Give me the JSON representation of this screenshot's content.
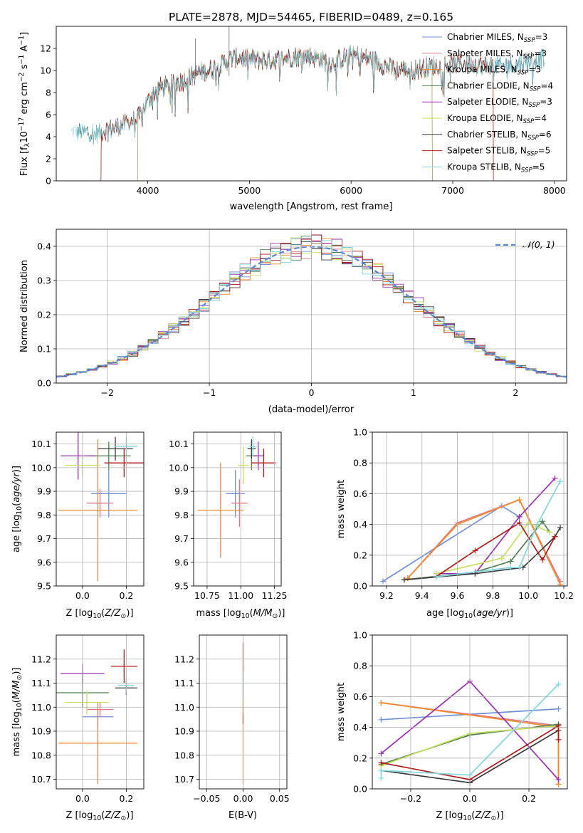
{
  "figure": {
    "title": "PLATE=2878, MJD=54465, FIBERID=0489, z=0.165"
  },
  "colors": {
    "chabrier_miles": "#6f8fd8",
    "salpeter_miles": "#e07a8a",
    "kroupa_miles": "#f08a2a",
    "chabrier_elodie": "#4f7f4f",
    "salpeter_elodie": "#9b30b0",
    "kroupa_elodie": "#c8e060",
    "chabrier_stelib": "#3a3a3a",
    "salpeter_stelib": "#b01818",
    "kroupa_stelib": "#80d8e0",
    "normal_curve": "#5b86d6"
  },
  "chart_data": [
    {
      "id": "spectrum",
      "type": "line",
      "title": "PLATE=2878, MJD=54465, FIBERID=0489, z=0.165",
      "xlabel": "wavelength [Angstrom, rest frame]",
      "ylabel": "Flux [f_λ 10^-17 erg cm^-2 s^-1 A^-1]",
      "xlim": [
        3100,
        8120
      ],
      "ylim": [
        0,
        14
      ],
      "xticks": [
        "4000",
        "5000",
        "6000",
        "7000",
        "8000"
      ],
      "yticks": [
        "0",
        "2",
        "4",
        "6",
        "8",
        "10",
        "12"
      ],
      "grid": false,
      "legend_position": "right",
      "shape": {
        "x": [
          3300,
          3500,
          3600,
          3700,
          3800,
          3900,
          4000,
          4100,
          4200,
          4300,
          4400,
          4500,
          4600,
          4700,
          4800,
          4900,
          5000,
          5200,
          5400,
          5600,
          5800,
          6000,
          6200,
          6400,
          6600,
          6800,
          7000,
          7200,
          7400,
          7600,
          7800,
          7900
        ],
        "y": [
          4.4,
          4.4,
          4.6,
          4.9,
          5.3,
          5.6,
          7.2,
          8.4,
          8.6,
          8.9,
          9.3,
          9.8,
          10.0,
          10.4,
          11.0,
          11.2,
          11.0,
          10.9,
          11.2,
          11.3,
          10.7,
          11.4,
          11.0,
          10.2,
          10.0,
          10.4,
          10.6,
          10.6,
          10.4,
          10.5,
          10.9,
          11.1
        ]
      },
      "series": [
        {
          "label": "Chabrier MILES, N",
          "n_ssp": "3",
          "color_key": "chabrier_miles",
          "cut": [
            3540,
            7880
          ]
        },
        {
          "label": "Salpeter MILES, N",
          "n_ssp": "3",
          "color_key": "salpeter_miles",
          "cut": [
            3540,
            7400
          ]
        },
        {
          "label": "Kroupa MILES, N",
          "n_ssp": "3",
          "color_key": "kroupa_miles",
          "cut": [
            3540,
            7400
          ]
        },
        {
          "label": "Chabrier ELODIE, N",
          "n_ssp": "4",
          "color_key": "chabrier_elodie",
          "cut": [
            3900,
            6800
          ]
        },
        {
          "label": "Salpeter ELODIE, N",
          "n_ssp": "3",
          "color_key": "salpeter_elodie",
          "cut": [
            3900,
            6800
          ]
        },
        {
          "label": "Kroupa ELODIE, N",
          "n_ssp": "4",
          "color_key": "kroupa_elodie",
          "cut": [
            3900,
            6800
          ]
        },
        {
          "label": "Chabrier STELIB, N",
          "n_ssp": "6",
          "color_key": "chabrier_stelib",
          "cut": [
            3300,
            7900
          ]
        },
        {
          "label": "Salpeter STELIB, N",
          "n_ssp": "5",
          "color_key": "salpeter_stelib",
          "cut": [
            3540,
            7400
          ]
        },
        {
          "label": "Kroupa STELIB, N",
          "n_ssp": "5",
          "color_key": "kroupa_stelib",
          "cut": [
            3200,
            7900
          ]
        }
      ]
    },
    {
      "id": "residuals",
      "type": "line",
      "xlabel": "(data-model)/error",
      "ylabel": "Normed distribution",
      "xlim": [
        -2.5,
        2.5
      ],
      "ylim": [
        0,
        0.45
      ],
      "xticks": [
        "−2",
        "−1",
        "0",
        "1",
        "2"
      ],
      "yticks": [
        "0.0",
        "0.1",
        "0.2",
        "0.3",
        "0.4"
      ],
      "grid": true,
      "legend_position": "top-right",
      "normal_label": "𝒩(0, 1)",
      "bin_width": 0.1
    },
    {
      "id": "age_vs_Z",
      "type": "scatter",
      "xlabel": "Z [log10(Z/Z☉)]",
      "ylabel": "age  [log10(age/yr)]",
      "xlim": [
        -0.12,
        0.28
      ],
      "ylim": [
        9.5,
        10.15
      ],
      "xticks": [
        "0.0",
        "0.2"
      ],
      "yticks": [
        "9.5",
        "9.6",
        "9.7",
        "9.8",
        "9.9",
        "10.0",
        "10.1"
      ],
      "grid": true,
      "points": [
        {
          "color_key": "chabrier_miles",
          "x": 0.12,
          "xerr": 0.08,
          "y": 9.89,
          "yerr": 0.1
        },
        {
          "color_key": "salpeter_miles",
          "x": 0.08,
          "xerr": 0.06,
          "y": 9.85,
          "yerr": 0.06
        },
        {
          "color_key": "kroupa_miles",
          "x": 0.07,
          "xerr": 0.18,
          "y": 9.82,
          "yerr": 0.3
        },
        {
          "color_key": "chabrier_elodie",
          "x": 0.12,
          "xerr": 0.1,
          "y": 10.05,
          "yerr": 0.06
        },
        {
          "color_key": "salpeter_elodie",
          "x": -0.02,
          "xerr": 0.08,
          "y": 10.05,
          "yerr": 0.1
        },
        {
          "color_key": "kroupa_elodie",
          "x": 0.0,
          "xerr": 0.08,
          "y": 10.01,
          "yerr": 0.05
        },
        {
          "color_key": "chabrier_stelib",
          "x": 0.15,
          "xerr": 0.08,
          "y": 10.08,
          "yerr": 0.05
        },
        {
          "color_key": "salpeter_stelib",
          "x": 0.19,
          "xerr": 0.09,
          "y": 10.02,
          "yerr": 0.06
        },
        {
          "color_key": "kroupa_stelib",
          "x": 0.2,
          "xerr": 0.05,
          "y": 10.09,
          "yerr": 0.04
        }
      ]
    },
    {
      "id": "age_vs_mass",
      "type": "scatter",
      "xlabel": "mass [log10(M/M☉)]",
      "ylabel": "",
      "xlim": [
        10.65,
        11.3
      ],
      "ylim": [
        9.5,
        10.15
      ],
      "xticks": [
        "10.75",
        "11.00",
        "11.25"
      ],
      "yticks": [
        "9.5",
        "9.6",
        "9.7",
        "9.8",
        "9.9",
        "10.0",
        "10.1"
      ],
      "grid": true,
      "points": [
        {
          "color_key": "chabrier_miles",
          "x": 10.96,
          "xerr": 0.07,
          "y": 9.89,
          "yerr": 0.1
        },
        {
          "color_key": "salpeter_miles",
          "x": 10.99,
          "xerr": 0.06,
          "y": 9.85,
          "yerr": 0.1
        },
        {
          "color_key": "kroupa_miles",
          "x": 10.85,
          "xerr": 0.17,
          "y": 9.82,
          "yerr": 0.2
        },
        {
          "color_key": "chabrier_elodie",
          "x": 11.08,
          "xerr": 0.04,
          "y": 10.05,
          "yerr": 0.06
        },
        {
          "color_key": "salpeter_elodie",
          "x": 11.13,
          "xerr": 0.04,
          "y": 10.05,
          "yerr": 0.06
        },
        {
          "color_key": "kroupa_elodie",
          "x": 11.02,
          "xerr": 0.04,
          "y": 10.01,
          "yerr": 0.08
        },
        {
          "color_key": "chabrier_stelib",
          "x": 11.08,
          "xerr": 0.03,
          "y": 10.08,
          "yerr": 0.04
        },
        {
          "color_key": "salpeter_stelib",
          "x": 11.17,
          "xerr": 0.09,
          "y": 10.02,
          "yerr": 0.06
        },
        {
          "color_key": "kroupa_stelib",
          "x": 11.09,
          "xerr": 0.03,
          "y": 10.09,
          "yerr": 0.04
        }
      ]
    },
    {
      "id": "weight_vs_age",
      "type": "line",
      "xlabel": "age  [log10(age/yr)]",
      "ylabel": "mass weight",
      "xlim": [
        9.12,
        10.22
      ],
      "ylim": [
        0,
        1
      ],
      "xticks": [
        "9.2",
        "9.4",
        "9.6",
        "9.8",
        "10.0",
        "10.2"
      ],
      "yticks": [
        "0.0",
        "0.2",
        "0.4",
        "0.6",
        "0.8",
        "1.0"
      ],
      "grid": true,
      "series": [
        {
          "color_key": "chabrier_miles",
          "x": [
            9.18,
            9.85,
            9.95
          ],
          "y": [
            0.03,
            0.52,
            0.45
          ]
        },
        {
          "color_key": "salpeter_miles",
          "x": [
            9.32,
            9.6,
            9.95,
            10.18
          ],
          "y": [
            0.05,
            0.41,
            0.56,
            0.03
          ]
        },
        {
          "color_key": "kroupa_miles",
          "x": [
            9.32,
            9.6,
            9.95,
            10.18
          ],
          "y": [
            0.05,
            0.4,
            0.56,
            0.01
          ]
        },
        {
          "color_key": "chabrier_elodie",
          "x": [
            9.3,
            9.7,
            9.9,
            10.08,
            10.12
          ],
          "y": [
            0.04,
            0.09,
            0.16,
            0.42,
            0.35
          ]
        },
        {
          "color_key": "salpeter_elodie",
          "x": [
            9.48,
            9.7,
            9.95,
            10.15
          ],
          "y": [
            0.08,
            0.08,
            0.45,
            0.7
          ]
        },
        {
          "color_key": "kroupa_elodie",
          "x": [
            9.48,
            9.85,
            10.0,
            10.12
          ],
          "y": [
            0.08,
            0.18,
            0.41,
            0.35
          ]
        },
        {
          "color_key": "chabrier_stelib",
          "x": [
            9.3,
            9.7,
            9.97,
            10.15,
            10.18
          ],
          "y": [
            0.04,
            0.08,
            0.12,
            0.32,
            0.38
          ]
        },
        {
          "color_key": "salpeter_stelib",
          "x": [
            9.48,
            9.7,
            9.95,
            10.08,
            10.15
          ],
          "y": [
            0.06,
            0.23,
            0.41,
            0.17,
            0.32
          ]
        },
        {
          "color_key": "kroupa_stelib",
          "x": [
            9.48,
            9.9,
            9.95,
            10.05,
            10.18
          ],
          "y": [
            0.06,
            0.12,
            0.12,
            0.4,
            0.68
          ]
        }
      ]
    },
    {
      "id": "mass_vs_Z",
      "type": "scatter",
      "xlabel": "Z [log10(Z/Z☉)]",
      "ylabel": "mass [log10(M/M☉)]",
      "xlim": [
        -0.12,
        0.28
      ],
      "ylim": [
        10.66,
        11.3
      ],
      "xticks": [
        "0.0",
        "0.2"
      ],
      "yticks": [
        "10.7",
        "10.8",
        "10.9",
        "11.0",
        "11.1",
        "11.2"
      ],
      "grid": true,
      "points": [
        {
          "color_key": "chabrier_miles",
          "x": 0.07,
          "xerr": 0.07,
          "y": 10.96,
          "yerr": 0.04
        },
        {
          "color_key": "salpeter_miles",
          "x": 0.08,
          "xerr": 0.06,
          "y": 10.99,
          "yerr": 0.03
        },
        {
          "color_key": "kroupa_miles",
          "x": 0.07,
          "xerr": 0.18,
          "y": 10.85,
          "yerr": 0.17
        },
        {
          "color_key": "chabrier_elodie",
          "x": 0.0,
          "xerr": 0.12,
          "y": 11.06,
          "yerr": 0.06
        },
        {
          "color_key": "salpeter_elodie",
          "x": 0.0,
          "xerr": 0.1,
          "y": 11.14,
          "yerr": 0.04
        },
        {
          "color_key": "kroupa_elodie",
          "x": 0.02,
          "xerr": 0.1,
          "y": 11.02,
          "yerr": 0.05
        },
        {
          "color_key": "chabrier_stelib",
          "x": 0.2,
          "xerr": 0.05,
          "y": 11.08,
          "yerr": 0.03
        },
        {
          "color_key": "salpeter_stelib",
          "x": 0.19,
          "xerr": 0.06,
          "y": 11.17,
          "yerr": 0.07
        },
        {
          "color_key": "kroupa_stelib",
          "x": 0.2,
          "xerr": 0.04,
          "y": 11.09,
          "yerr": 0.03
        }
      ]
    },
    {
      "id": "mass_vs_ebv",
      "type": "scatter",
      "xlabel": "E(B-V)",
      "ylabel": "",
      "xlim": [
        -0.06,
        0.06
      ],
      "ylim": [
        10.66,
        11.3
      ],
      "xticks": [
        "−0.05",
        "0.00",
        "0.05"
      ],
      "yticks": [
        "10.7",
        "10.8",
        "10.9",
        "11.0",
        "11.1",
        "11.2"
      ],
      "grid": true,
      "points": [
        {
          "color_key": "kroupa_miles",
          "x": 0.0,
          "xerr": 0,
          "y": 10.85,
          "yerr": 0.17
        },
        {
          "color_key": "salpeter_stelib",
          "x": 0.0,
          "xerr": 0,
          "y": 11.1,
          "yerr": 0.17
        },
        {
          "color_key": "kroupa_elodie",
          "x": 0.0,
          "xerr": 0,
          "y": 11.02,
          "yerr": 0.05
        },
        {
          "color_key": "kroupa_stelib",
          "x": 0.0,
          "xerr": 0,
          "y": 11.09,
          "yerr": 0.06
        }
      ]
    },
    {
      "id": "weight_vs_Z",
      "type": "line",
      "xlabel": "Z [log10(Z/Z☉)]",
      "ylabel": "mass weight",
      "xlim": [
        -0.33,
        0.33
      ],
      "ylim": [
        0,
        1
      ],
      "xticks": [
        "−0.2",
        "0.0",
        "0.2"
      ],
      "yticks": [
        "0.0",
        "0.2",
        "0.4",
        "0.6",
        "0.8",
        "1.0"
      ],
      "grid": true,
      "series": [
        {
          "color_key": "chabrier_miles",
          "x": [
            -0.3,
            0.3
          ],
          "y": [
            0.45,
            0.52
          ]
        },
        {
          "color_key": "salpeter_miles",
          "x": [
            -0.3,
            0.3,
            0.3
          ],
          "y": [
            0.56,
            0.41,
            0.03
          ]
        },
        {
          "color_key": "kroupa_miles",
          "x": [
            -0.3,
            0.3,
            0.3
          ],
          "y": [
            0.56,
            0.4,
            0.03
          ]
        },
        {
          "color_key": "chabrier_elodie",
          "x": [
            -0.3,
            0.0,
            0.3
          ],
          "y": [
            0.16,
            0.35,
            0.42
          ]
        },
        {
          "color_key": "salpeter_elodie",
          "x": [
            -0.3,
            0.0,
            0.3
          ],
          "y": [
            0.23,
            0.7,
            0.06
          ]
        },
        {
          "color_key": "kroupa_elodie",
          "x": [
            -0.3,
            0.0,
            0.3
          ],
          "y": [
            0.15,
            0.36,
            0.41
          ]
        },
        {
          "color_key": "chabrier_stelib",
          "x": [
            -0.3,
            0.0,
            0.3
          ],
          "y": [
            0.12,
            0.04,
            0.38
          ]
        },
        {
          "color_key": "salpeter_stelib",
          "x": [
            -0.3,
            0.0,
            0.3,
            0.3
          ],
          "y": [
            0.17,
            0.06,
            0.41,
            0.32
          ]
        },
        {
          "color_key": "kroupa_stelib",
          "x": [
            -0.3,
            -0.3,
            0.0,
            0.3
          ],
          "y": [
            0.07,
            0.12,
            0.09,
            0.68
          ]
        }
      ]
    }
  ]
}
